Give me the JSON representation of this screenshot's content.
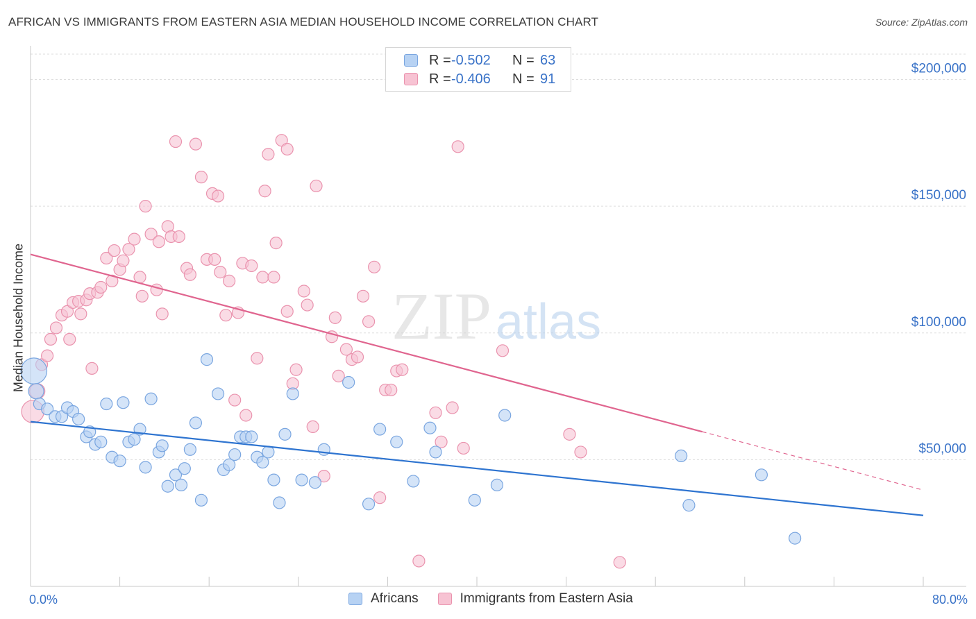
{
  "title": "AFRICAN VS IMMIGRANTS FROM EASTERN ASIA MEDIAN HOUSEHOLD INCOME CORRELATION CHART",
  "source": "Source: ZipAtlas.com",
  "watermark": {
    "zip": "ZIP",
    "atlas": "atlas"
  },
  "colors": {
    "blue_fill": "#b7d2f3",
    "blue_stroke": "#7aa6e0",
    "blue_line": "#2e74d0",
    "pink_fill": "#f7c3d3",
    "pink_stroke": "#ea93ae",
    "pink_line": "#e0658f",
    "axis_text": "#3a73c8",
    "grid": "#dedede"
  },
  "legend": {
    "rows": [
      {
        "r_label": "R =",
        "r_value": "-0.502",
        "n_label": "N =",
        "n_value": "63"
      },
      {
        "r_label": "R =",
        "r_value": "-0.406",
        "n_label": "N =",
        "n_value": "91"
      }
    ]
  },
  "chart_data": {
    "type": "scatter",
    "xlabel": "",
    "ylabel": "Median Household Income",
    "xlim": [
      0,
      80
    ],
    "ylim": [
      0,
      210000
    ],
    "x_tick_labels": [
      "0.0%",
      "80.0%"
    ],
    "y_ticks": [
      50000,
      100000,
      150000,
      200000
    ],
    "y_tick_labels": [
      "$50,000",
      "$100,000",
      "$150,000",
      "$200,000"
    ],
    "grid": true,
    "series": [
      {
        "name": "Africans",
        "color": "blue",
        "trend": {
          "x0": 0,
          "y0": 65000,
          "x1": 80,
          "y1": 28000,
          "dash_from": null
        },
        "points": [
          [
            0.3,
            85000,
            2.2
          ],
          [
            0.5,
            77000,
            1.3
          ],
          [
            0.8,
            72000,
            1
          ],
          [
            1.5,
            70000,
            1
          ],
          [
            2.2,
            67000,
            1
          ],
          [
            2.8,
            67000,
            1
          ],
          [
            3.3,
            70500,
            1
          ],
          [
            3.8,
            69000,
            1
          ],
          [
            4.3,
            66000,
            1
          ],
          [
            5.0,
            59000,
            1
          ],
          [
            5.3,
            61000,
            1
          ],
          [
            5.8,
            56000,
            1
          ],
          [
            6.3,
            57000,
            1
          ],
          [
            6.8,
            72000,
            1
          ],
          [
            7.3,
            51000,
            1
          ],
          [
            8.0,
            49500,
            1
          ],
          [
            8.3,
            72500,
            1
          ],
          [
            8.8,
            57000,
            1
          ],
          [
            9.3,
            58000,
            1
          ],
          [
            9.8,
            62000,
            1
          ],
          [
            10.3,
            47000,
            1
          ],
          [
            10.8,
            74000,
            1
          ],
          [
            11.5,
            53000,
            1
          ],
          [
            11.8,
            55500,
            1
          ],
          [
            12.3,
            39500,
            1
          ],
          [
            13.0,
            44000,
            1
          ],
          [
            13.5,
            40000,
            1
          ],
          [
            13.8,
            46500,
            1
          ],
          [
            14.3,
            54000,
            1
          ],
          [
            14.8,
            64500,
            1
          ],
          [
            15.3,
            34000,
            1
          ],
          [
            15.8,
            89500,
            1
          ],
          [
            16.8,
            76000,
            1
          ],
          [
            17.3,
            46000,
            1
          ],
          [
            17.8,
            48000,
            1
          ],
          [
            18.3,
            52000,
            1
          ],
          [
            18.8,
            59000,
            1
          ],
          [
            19.3,
            59000,
            1
          ],
          [
            19.8,
            59000,
            1
          ],
          [
            20.3,
            51000,
            1
          ],
          [
            20.8,
            49000,
            1
          ],
          [
            21.3,
            53000,
            1
          ],
          [
            21.8,
            42000,
            1
          ],
          [
            22.3,
            33000,
            1
          ],
          [
            22.8,
            60000,
            1
          ],
          [
            23.5,
            76000,
            1
          ],
          [
            24.3,
            42000,
            1
          ],
          [
            25.5,
            41000,
            1
          ],
          [
            26.3,
            54000,
            1
          ],
          [
            28.5,
            80500,
            1
          ],
          [
            30.3,
            32500,
            1
          ],
          [
            31.3,
            62000,
            1
          ],
          [
            32.8,
            57000,
            1
          ],
          [
            34.3,
            41500,
            1
          ],
          [
            35.8,
            62500,
            1
          ],
          [
            36.3,
            53000,
            1
          ],
          [
            39.8,
            34000,
            1
          ],
          [
            41.8,
            40000,
            1
          ],
          [
            42.5,
            67500,
            1
          ],
          [
            58.3,
            51500,
            1
          ],
          [
            59.0,
            32000,
            1
          ],
          [
            65.5,
            44000,
            1
          ],
          [
            68.5,
            19000,
            1
          ]
        ]
      },
      {
        "name": "Immigrants from Eastern Asia",
        "color": "pink",
        "trend": {
          "x0": 0,
          "y0": 131000,
          "x1": 80,
          "y1": 38000,
          "dash_from": 60.2
        },
        "points": [
          [
            0.2,
            69000,
            1.9
          ],
          [
            0.6,
            77000,
            1.3
          ],
          [
            1.0,
            87500,
            1
          ],
          [
            1.5,
            91000,
            1
          ],
          [
            1.8,
            97500,
            1
          ],
          [
            2.3,
            102000,
            1
          ],
          [
            2.8,
            107000,
            1
          ],
          [
            3.3,
            108500,
            1
          ],
          [
            3.5,
            97500,
            1
          ],
          [
            3.8,
            112000,
            1
          ],
          [
            4.3,
            112500,
            1
          ],
          [
            4.5,
            107500,
            1
          ],
          [
            5.0,
            113000,
            1
          ],
          [
            5.3,
            115500,
            1
          ],
          [
            5.5,
            86000,
            1
          ],
          [
            6.0,
            116000,
            1
          ],
          [
            6.3,
            118000,
            1
          ],
          [
            6.8,
            129500,
            1
          ],
          [
            7.3,
            120500,
            1
          ],
          [
            7.5,
            132500,
            1
          ],
          [
            8.0,
            125000,
            1
          ],
          [
            8.3,
            128500,
            1
          ],
          [
            8.8,
            133000,
            1
          ],
          [
            9.3,
            137000,
            1
          ],
          [
            9.8,
            122000,
            1
          ],
          [
            10.0,
            114500,
            1
          ],
          [
            10.3,
            150000,
            1
          ],
          [
            10.8,
            139000,
            1
          ],
          [
            11.3,
            117000,
            1
          ],
          [
            11.5,
            136000,
            1
          ],
          [
            11.8,
            107500,
            1
          ],
          [
            12.3,
            142000,
            1
          ],
          [
            12.6,
            138000,
            1
          ],
          [
            13.3,
            138000,
            1
          ],
          [
            13.0,
            175500,
            1
          ],
          [
            14.0,
            125500,
            1
          ],
          [
            14.3,
            123000,
            1
          ],
          [
            14.8,
            174500,
            1
          ],
          [
            15.3,
            161500,
            1
          ],
          [
            15.8,
            129000,
            1
          ],
          [
            16.3,
            155000,
            1
          ],
          [
            16.8,
            154000,
            1
          ],
          [
            16.5,
            129000,
            1
          ],
          [
            17.0,
            124000,
            1
          ],
          [
            17.5,
            107000,
            1
          ],
          [
            17.8,
            120500,
            1
          ],
          [
            18.3,
            73500,
            1
          ],
          [
            18.6,
            108000,
            1
          ],
          [
            19.0,
            127500,
            1
          ],
          [
            19.3,
            67500,
            1
          ],
          [
            19.8,
            126500,
            1
          ],
          [
            20.3,
            90000,
            1
          ],
          [
            20.8,
            122000,
            1
          ],
          [
            21.0,
            156000,
            1
          ],
          [
            21.3,
            170500,
            1
          ],
          [
            21.8,
            122000,
            1
          ],
          [
            22.0,
            135500,
            1
          ],
          [
            22.5,
            176000,
            1
          ],
          [
            23.0,
            172500,
            1
          ],
          [
            23.0,
            108500,
            1
          ],
          [
            23.5,
            80000,
            1
          ],
          [
            23.8,
            85500,
            1
          ],
          [
            24.5,
            116500,
            1
          ],
          [
            24.8,
            111000,
            1
          ],
          [
            25.3,
            63000,
            1
          ],
          [
            25.6,
            158000,
            1
          ],
          [
            26.3,
            43500,
            1
          ],
          [
            27.0,
            98500,
            1
          ],
          [
            27.3,
            106000,
            1
          ],
          [
            27.6,
            83000,
            1
          ],
          [
            28.3,
            93500,
            1
          ],
          [
            28.8,
            89500,
            1
          ],
          [
            29.3,
            90500,
            1
          ],
          [
            29.8,
            114500,
            1
          ],
          [
            30.3,
            104500,
            1
          ],
          [
            30.8,
            126000,
            1
          ],
          [
            31.3,
            35000,
            1
          ],
          [
            31.8,
            77500,
            1
          ],
          [
            32.3,
            77500,
            1
          ],
          [
            32.8,
            85000,
            1
          ],
          [
            33.3,
            85500,
            1
          ],
          [
            34.8,
            10000,
            1
          ],
          [
            36.3,
            68500,
            1
          ],
          [
            36.8,
            57000,
            1
          ],
          [
            37.8,
            70500,
            1
          ],
          [
            38.3,
            173500,
            1
          ],
          [
            38.8,
            54500,
            1
          ],
          [
            42.3,
            93000,
            1
          ],
          [
            48.3,
            60000,
            1
          ],
          [
            49.3,
            53000,
            1
          ],
          [
            52.8,
            9500,
            1
          ]
        ]
      }
    ]
  },
  "bottom_legend": [
    "Africans",
    "Immigrants from Eastern Asia"
  ]
}
